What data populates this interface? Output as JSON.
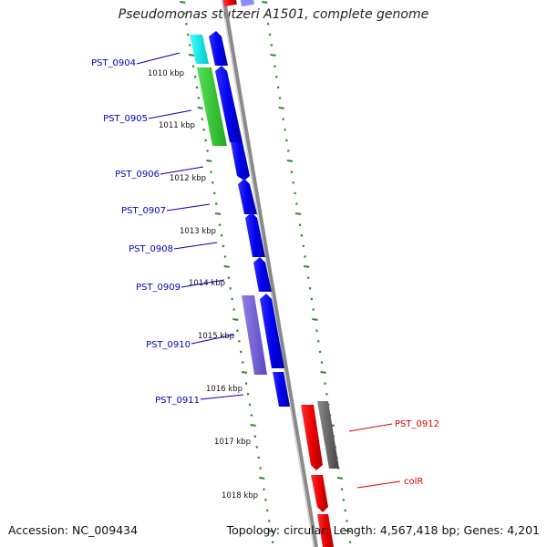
{
  "title": "Pseudomonas stutzeri A1501, complete genome",
  "footer": {
    "accession": "Accession: NC_009434",
    "summary": "Topology: circular; Length: 4,567,418 bp; Genes: 4,201"
  },
  "colors": {
    "backbone": "#8a8a8a",
    "tick_dots": "#2a8a2a",
    "forward_gene": "#0000ee",
    "reverse_gene": "#ee0000",
    "label_forward": "#0000bb",
    "label_reverse": "#dd0000",
    "cyan_feature": "#00e5e5",
    "green_feature": "#33cc33",
    "purple_feature": "#7b68d8",
    "gray_feature": "#666666"
  },
  "scale_labels": [
    "1010 kbp",
    "1011 kbp",
    "1012 kbp",
    "1013 kbp",
    "1014 kbp",
    "1015 kbp",
    "1016 kbp",
    "1017 kbp",
    "1018 kbp"
  ],
  "gene_labels": [
    "PST_0904",
    "PST_0905",
    "PST_0906",
    "PST_0907",
    "PST_0908",
    "PST_0909",
    "PST_0910",
    "PST_0911",
    "PST_0912",
    "colR"
  ]
}
